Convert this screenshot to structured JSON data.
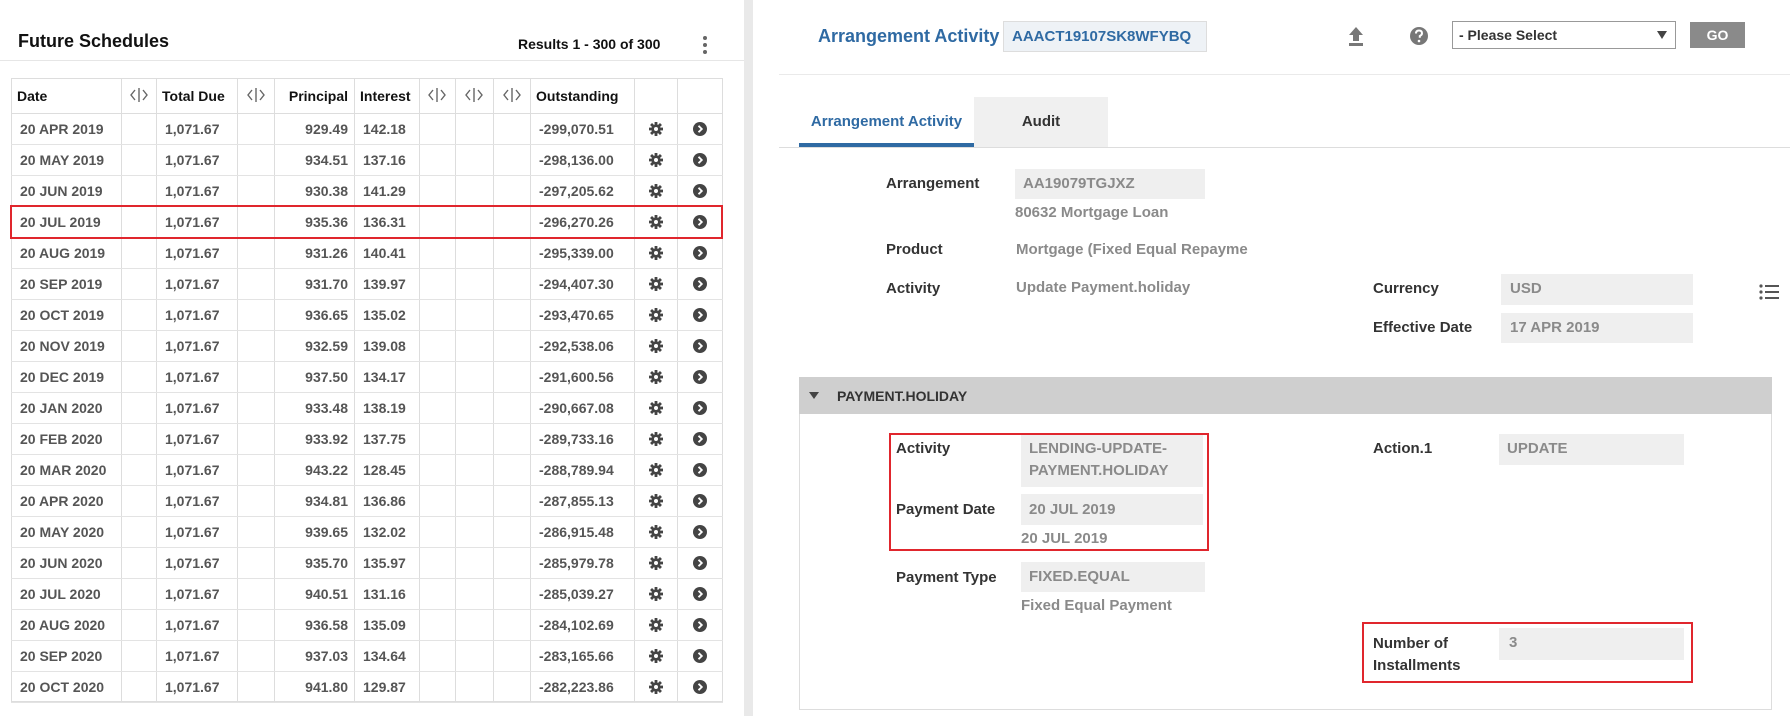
{
  "left": {
    "title": "Future Schedules",
    "results": "Results 1 - 300 of 300",
    "table": {
      "headers": [
        "Date",
        "Total Due",
        "Principal",
        "Interest",
        "Outstanding"
      ],
      "rows": [
        [
          "20 APR 2019",
          "1,071.67",
          "929.49",
          "142.18",
          "-299,070.51"
        ],
        [
          "20 MAY 2019",
          "1,071.67",
          "934.51",
          "137.16",
          "-298,136.00"
        ],
        [
          "20 JUN 2019",
          "1,071.67",
          "930.38",
          "141.29",
          "-297,205.62"
        ],
        [
          "20 JUL 2019",
          "1,071.67",
          "935.36",
          "136.31",
          "-296,270.26"
        ],
        [
          "20 AUG 2019",
          "1,071.67",
          "931.26",
          "140.41",
          "-295,339.00"
        ],
        [
          "20 SEP 2019",
          "1,071.67",
          "931.70",
          "139.97",
          "-294,407.30"
        ],
        [
          "20 OCT 2019",
          "1,071.67",
          "936.65",
          "135.02",
          "-293,470.65"
        ],
        [
          "20 NOV 2019",
          "1,071.67",
          "932.59",
          "139.08",
          "-292,538.06"
        ],
        [
          "20 DEC 2019",
          "1,071.67",
          "937.50",
          "134.17",
          "-291,600.56"
        ],
        [
          "20 JAN 2020",
          "1,071.67",
          "933.48",
          "138.19",
          "-290,667.08"
        ],
        [
          "20 FEB 2020",
          "1,071.67",
          "933.92",
          "137.75",
          "-289,733.16"
        ],
        [
          "20 MAR 2020",
          "1,071.67",
          "943.22",
          "128.45",
          "-288,789.94"
        ],
        [
          "20 APR 2020",
          "1,071.67",
          "934.81",
          "136.86",
          "-287,855.13"
        ],
        [
          "20 MAY 2020",
          "1,071.67",
          "939.65",
          "132.02",
          "-286,915.48"
        ],
        [
          "20 JUN 2020",
          "1,071.67",
          "935.70",
          "135.97",
          "-285,979.78"
        ],
        [
          "20 JUL 2020",
          "1,071.67",
          "940.51",
          "131.16",
          "-285,039.27"
        ],
        [
          "20 AUG 2020",
          "1,071.67",
          "936.58",
          "135.09",
          "-284,102.69"
        ],
        [
          "20 SEP 2020",
          "1,071.67",
          "937.03",
          "134.64",
          "-283,165.66"
        ],
        [
          "20 OCT 2020",
          "1,071.67",
          "941.80",
          "129.87",
          "-282,223.86"
        ]
      ]
    }
  },
  "right": {
    "title": "Arrangement Activity",
    "id": "AAACT19107SK8WFYBQ",
    "select": "- Please Select",
    "go": "GO",
    "tabs": [
      "Arrangement Activity",
      "Audit"
    ],
    "arrangement": {
      "label": "Arrangement",
      "value": "AA19079TGJXZ",
      "note": "80632 Mortgage Loan"
    },
    "product": {
      "label": "Product",
      "value": "Mortgage (Fixed Equal Repayme"
    },
    "activity": {
      "label": "Activity",
      "value": "Update Payment.holiday"
    },
    "currency": {
      "label": "Currency",
      "value": "USD"
    },
    "effective_date": {
      "label": "Effective Date",
      "value": "17 APR 2019"
    },
    "section": {
      "title": "PAYMENT.HOLIDAY",
      "activity": {
        "label": "Activity",
        "value": [
          "LENDING-UPDATE-",
          "PAYMENT.HOLIDAY"
        ]
      },
      "payment_date": {
        "label": "Payment Date",
        "value": "20 JUL 2019",
        "note": "20 JUL 2019"
      },
      "payment_type": {
        "label": "Payment Type",
        "value": "FIXED.EQUAL",
        "note": "Fixed Equal Payment"
      },
      "action": {
        "label": "Action.1",
        "value": "UPDATE"
      },
      "installments": {
        "label": [
          "Number of",
          "Installments"
        ],
        "value": "3"
      }
    }
  }
}
